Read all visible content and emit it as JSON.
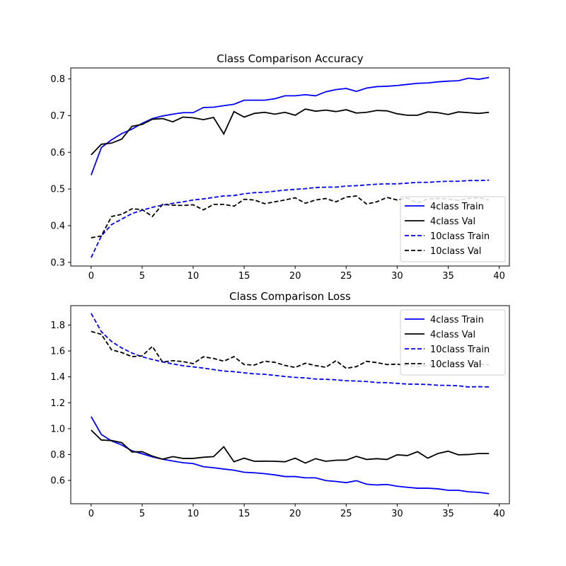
{
  "chart_data": [
    {
      "type": "line",
      "title": "Class Comparison Accuracy",
      "xlabel": "",
      "ylabel": "",
      "xlim": [
        -2.0,
        41.0
      ],
      "ylim": [
        0.29,
        0.83
      ],
      "xticks": [
        0,
        5,
        10,
        15,
        20,
        25,
        30,
        35,
        40
      ],
      "xtick_labels": [
        "0",
        "5",
        "10",
        "15",
        "20",
        "25",
        "30",
        "35",
        "40"
      ],
      "yticks": [
        0.3,
        0.4,
        0.5,
        0.6,
        0.7,
        0.8
      ],
      "ytick_labels": [
        "0.3",
        "0.4",
        "0.5",
        "0.6",
        "0.7",
        "0.8"
      ],
      "grid": false,
      "legend_position": "lower-right",
      "x": [
        0,
        1,
        2,
        3,
        4,
        5,
        6,
        7,
        8,
        9,
        10,
        11,
        12,
        13,
        14,
        15,
        16,
        17,
        18,
        19,
        20,
        21,
        22,
        23,
        24,
        25,
        26,
        27,
        28,
        29,
        30,
        31,
        32,
        33,
        34,
        35,
        36,
        37,
        38,
        39
      ],
      "series": [
        {
          "name": "4class Train",
          "color": "#0000ff",
          "dash": "solid",
          "values": [
            0.538,
            0.613,
            0.634,
            0.651,
            0.663,
            0.679,
            0.692,
            0.699,
            0.704,
            0.708,
            0.708,
            0.722,
            0.723,
            0.727,
            0.731,
            0.742,
            0.742,
            0.742,
            0.746,
            0.754,
            0.754,
            0.757,
            0.754,
            0.765,
            0.771,
            0.774,
            0.766,
            0.775,
            0.779,
            0.78,
            0.782,
            0.785,
            0.788,
            0.789,
            0.792,
            0.794,
            0.795,
            0.802,
            0.799,
            0.804
          ]
        },
        {
          "name": "4class Val",
          "color": "#000000",
          "dash": "solid",
          "values": [
            0.593,
            0.622,
            0.625,
            0.636,
            0.671,
            0.676,
            0.69,
            0.692,
            0.683,
            0.696,
            0.694,
            0.689,
            0.695,
            0.65,
            0.711,
            0.696,
            0.706,
            0.709,
            0.704,
            0.709,
            0.701,
            0.718,
            0.712,
            0.715,
            0.711,
            0.716,
            0.707,
            0.709,
            0.714,
            0.713,
            0.705,
            0.701,
            0.701,
            0.71,
            0.708,
            0.703,
            0.71,
            0.708,
            0.706,
            0.709
          ]
        },
        {
          "name": "10class Train",
          "color": "#0000ff",
          "dash": "dashed",
          "values": [
            0.313,
            0.372,
            0.403,
            0.418,
            0.433,
            0.442,
            0.45,
            0.456,
            0.461,
            0.465,
            0.47,
            0.473,
            0.477,
            0.481,
            0.482,
            0.487,
            0.49,
            0.491,
            0.494,
            0.497,
            0.499,
            0.501,
            0.504,
            0.505,
            0.505,
            0.508,
            0.509,
            0.511,
            0.513,
            0.514,
            0.514,
            0.516,
            0.518,
            0.518,
            0.52,
            0.521,
            0.521,
            0.523,
            0.523,
            0.524
          ]
        },
        {
          "name": "10class Val",
          "color": "#000000",
          "dash": "dashed",
          "values": [
            0.367,
            0.372,
            0.425,
            0.431,
            0.446,
            0.444,
            0.425,
            0.458,
            0.456,
            0.455,
            0.457,
            0.443,
            0.458,
            0.458,
            0.453,
            0.472,
            0.47,
            0.46,
            0.465,
            0.47,
            0.476,
            0.461,
            0.47,
            0.474,
            0.465,
            0.478,
            0.481,
            0.459,
            0.465,
            0.477,
            0.47,
            0.475,
            0.462,
            0.473,
            0.474,
            0.473,
            0.469,
            0.474,
            0.476,
            0.47
          ]
        }
      ]
    },
    {
      "type": "line",
      "title": "Class Comparison Loss",
      "xlabel": "",
      "ylabel": "",
      "xlim": [
        -2.0,
        41.0
      ],
      "ylim": [
        0.42,
        1.95
      ],
      "xticks": [
        0,
        5,
        10,
        15,
        20,
        25,
        30,
        35,
        40
      ],
      "xtick_labels": [
        "0",
        "5",
        "10",
        "15",
        "20",
        "25",
        "30",
        "35",
        "40"
      ],
      "yticks": [
        0.6,
        0.8,
        1.0,
        1.2,
        1.4,
        1.6,
        1.8
      ],
      "ytick_labels": [
        "0.6",
        "0.8",
        "1.0",
        "1.2",
        "1.4",
        "1.6",
        "1.8"
      ],
      "grid": false,
      "legend_position": "upper-right",
      "x": [
        0,
        1,
        2,
        3,
        4,
        5,
        6,
        7,
        8,
        9,
        10,
        11,
        12,
        13,
        14,
        15,
        16,
        17,
        18,
        19,
        20,
        21,
        22,
        23,
        24,
        25,
        26,
        27,
        28,
        29,
        30,
        31,
        32,
        33,
        34,
        35,
        36,
        37,
        38,
        39
      ],
      "series": [
        {
          "name": "4class Train",
          "color": "#0000ff",
          "dash": "solid",
          "values": [
            1.093,
            0.955,
            0.905,
            0.874,
            0.829,
            0.806,
            0.782,
            0.764,
            0.75,
            0.737,
            0.73,
            0.706,
            0.698,
            0.688,
            0.679,
            0.663,
            0.659,
            0.652,
            0.643,
            0.63,
            0.63,
            0.62,
            0.62,
            0.599,
            0.592,
            0.583,
            0.598,
            0.571,
            0.565,
            0.569,
            0.555,
            0.547,
            0.54,
            0.54,
            0.535,
            0.524,
            0.524,
            0.512,
            0.508,
            0.498
          ]
        },
        {
          "name": "4class Val",
          "color": "#000000",
          "dash": "solid",
          "values": [
            0.989,
            0.912,
            0.908,
            0.892,
            0.82,
            0.822,
            0.788,
            0.764,
            0.784,
            0.77,
            0.77,
            0.779,
            0.784,
            0.86,
            0.744,
            0.772,
            0.748,
            0.749,
            0.748,
            0.744,
            0.772,
            0.734,
            0.768,
            0.748,
            0.756,
            0.757,
            0.786,
            0.762,
            0.768,
            0.762,
            0.798,
            0.792,
            0.822,
            0.772,
            0.808,
            0.826,
            0.798,
            0.8,
            0.808,
            0.808
          ]
        },
        {
          "name": "10class Train",
          "color": "#0000ff",
          "dash": "dashed",
          "values": [
            1.89,
            1.749,
            1.673,
            1.623,
            1.584,
            1.555,
            1.534,
            1.515,
            1.5,
            1.486,
            1.477,
            1.468,
            1.456,
            1.445,
            1.44,
            1.431,
            1.423,
            1.42,
            1.411,
            1.403,
            1.396,
            1.392,
            1.383,
            1.381,
            1.377,
            1.37,
            1.368,
            1.364,
            1.356,
            1.355,
            1.35,
            1.344,
            1.343,
            1.341,
            1.335,
            1.334,
            1.331,
            1.322,
            1.324,
            1.322
          ]
        },
        {
          "name": "10class Val",
          "color": "#000000",
          "dash": "dashed",
          "values": [
            1.751,
            1.728,
            1.609,
            1.588,
            1.556,
            1.562,
            1.635,
            1.514,
            1.525,
            1.518,
            1.502,
            1.555,
            1.542,
            1.521,
            1.556,
            1.495,
            1.491,
            1.521,
            1.512,
            1.488,
            1.473,
            1.505,
            1.487,
            1.474,
            1.525,
            1.466,
            1.479,
            1.52,
            1.51,
            1.495,
            1.498,
            1.487,
            1.478,
            1.489,
            1.494,
            1.505,
            1.501,
            1.503,
            1.497,
            1.493
          ]
        }
      ]
    }
  ]
}
